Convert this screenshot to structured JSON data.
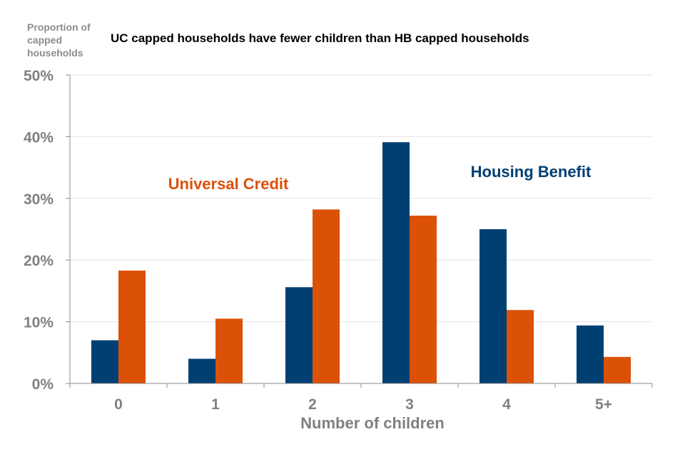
{
  "chart_data": {
    "type": "bar",
    "title": "UC capped households have fewer children than HB capped households",
    "ylabel": "Proportion of capped households",
    "xlabel": "Number of children",
    "categories": [
      "0",
      "1",
      "2",
      "3",
      "4",
      "5+"
    ],
    "yticks": [
      "0%",
      "10%",
      "20%",
      "30%",
      "40%",
      "50%"
    ],
    "ylim": [
      0,
      50
    ],
    "grid": true,
    "series": [
      {
        "name": "Housing Benefit",
        "color": "#003f72",
        "values": [
          7,
          4,
          15.6,
          39.1,
          25,
          9.4
        ]
      },
      {
        "name": "Universal Credit",
        "color": "#dc5108",
        "values": [
          18.3,
          10.5,
          28.2,
          27.2,
          11.9,
          4.3
        ]
      }
    ]
  }
}
